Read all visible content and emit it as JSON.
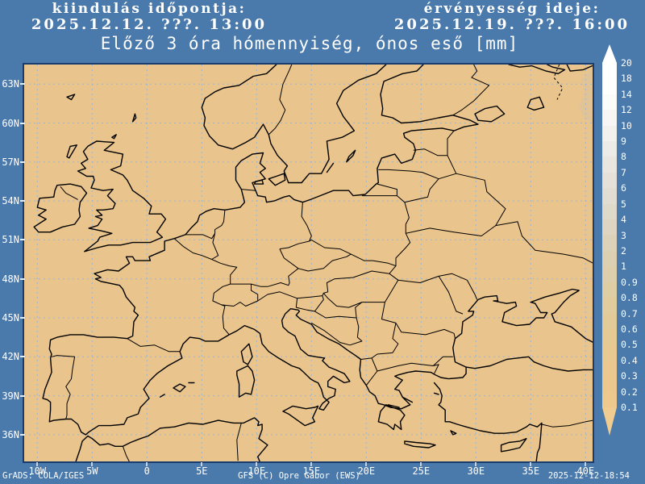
{
  "header": {
    "start_label": "kiindulás időpontja:",
    "start_value": "2025.12.12. ???. 13:00",
    "valid_label": "érvényesség ideje:",
    "valid_value": "2025.12.19. ???. 16:00"
  },
  "title": "Előző 3 óra hómennyiség, ónos eső [mm]",
  "map": {
    "lat_labels": [
      "63N",
      "60N",
      "57N",
      "54N",
      "51N",
      "48N",
      "45N",
      "42N",
      "39N",
      "36N"
    ],
    "lon_labels": [
      "10W",
      "5W",
      "0",
      "5E",
      "10E",
      "15E",
      "20E",
      "25E",
      "30E",
      "35E",
      "40E"
    ]
  },
  "colorbar": {
    "labels": [
      "20",
      "18",
      "14",
      "12",
      "10",
      "9",
      "8",
      "7",
      "6",
      "5",
      "4",
      "3",
      "2",
      "1",
      "0.9",
      "0.8",
      "0.7",
      "0.6",
      "0.5",
      "0.4",
      "0.3",
      "0.2",
      "0.1"
    ],
    "arrow_top_color": "#ffffff",
    "arrow_bottom_color": "#f1cc90",
    "segment_colors": [
      "#ffffff",
      "#fefefe",
      "#fbfbfa",
      "#f7f6f4",
      "#f2f1ee",
      "#edebe7",
      "#e9e6e0",
      "#e5e1d9",
      "#e2ddd2",
      "#dfd9ca",
      "#ddd5c2",
      "#dcd2ba",
      "#dcd0b2",
      "#ddcfab",
      "#dfcda4",
      "#e1cc9e",
      "#e3cb99",
      "#e6ca94",
      "#e8c991",
      "#eac88f",
      "#ecc88e",
      "#eec98e"
    ]
  },
  "footer": {
    "grads_credit": "GrADS: COLA/IGES",
    "model_credit": "GFS (C) Opre Gábor (EWS)",
    "generated": "2025-12-12-18:54"
  },
  "colors": {
    "page_bg": "#4a79ab",
    "land": "#e9c48c",
    "frame": "#173c6d",
    "grid": "#9fb6cf",
    "coast": "#000000",
    "text": "#ffffff",
    "shade_patch": "#e2c396"
  },
  "chart_data": {
    "type": "map",
    "title": "Előző 3 óra hómennyiség, ónos eső [mm]",
    "region": "Europe",
    "lon_ticks": [
      "10W",
      "5W",
      "0",
      "5E",
      "10E",
      "15E",
      "20E",
      "25E",
      "30E",
      "35E",
      "40E"
    ],
    "lat_ticks": [
      "63N",
      "60N",
      "57N",
      "54N",
      "51N",
      "48N",
      "45N",
      "42N",
      "39N",
      "36N"
    ],
    "scale_levels_mm": [
      0.1,
      0.2,
      0.3,
      0.4,
      0.5,
      0.6,
      0.7,
      0.8,
      0.9,
      1,
      2,
      3,
      4,
      5,
      6,
      7,
      8,
      9,
      10,
      12,
      14,
      18,
      20
    ],
    "field_note": "no shaded precipitation areas visible on the map (values below lowest scale level)"
  }
}
